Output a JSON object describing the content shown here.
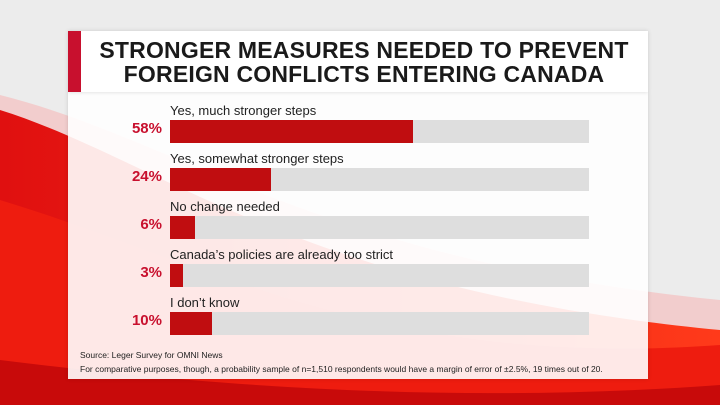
{
  "colors": {
    "accent": "#c8102e",
    "bar": "#c00d10",
    "track": "#dedede"
  },
  "chart_data": {
    "type": "bar",
    "orientation": "horizontal",
    "title": "STRONGER MEASURES NEEDED TO PREVENT FOREIGN CONFLICTS ENTERING CANADA",
    "categories": [
      "Yes, much stronger steps",
      "Yes, somewhat stronger steps",
      "No change needed",
      "Canada’s policies are already too strict",
      "I don’t know"
    ],
    "values": [
      58,
      24,
      6,
      3,
      10
    ],
    "value_labels": [
      "58%",
      "24%",
      "6%",
      "3%",
      "10%"
    ],
    "xlim": [
      0,
      100
    ],
    "unit": "%"
  },
  "footer": {
    "source": "Source: Leger Survey for OMNI News",
    "note": "For comparative purposes, though, a probability sample of n=1,510 respondents would have a margin of error of ±2.5%, 19 times out of 20."
  }
}
